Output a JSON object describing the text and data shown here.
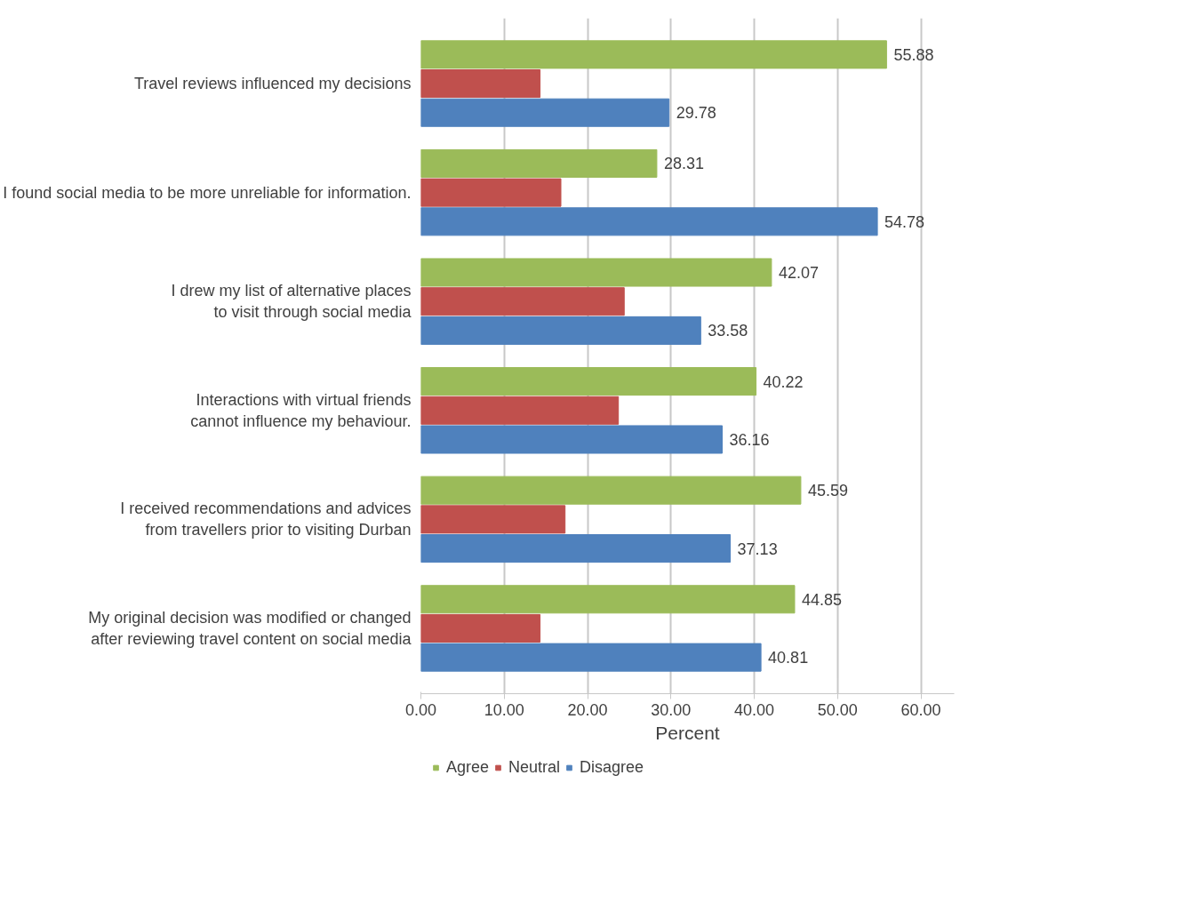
{
  "chart_data": {
    "type": "bar",
    "orientation": "horizontal",
    "xlabel": "Percent",
    "categories": [
      "Travel reviews influenced my decisions",
      "I found social media to be more unreliable for information.",
      "I drew my list of alternative places to visit through social media",
      "Interactions with virtual friends cannot influence my behaviour.",
      "I received recommendations and advices from travellers prior to visiting Durban",
      "My original decision was modified or changed after reviewing travel content on social media"
    ],
    "series": [
      {
        "name": "Agree",
        "color": "#9bbb59",
        "values": [
          55.88,
          28.31,
          42.07,
          40.22,
          45.59,
          44.85
        ],
        "value_labels": [
          "55.88",
          "28.31",
          "42.07",
          "40.22",
          "45.59",
          "44.85"
        ]
      },
      {
        "name": "Neutral",
        "color": "#c0504d",
        "values": [
          14.3,
          16.8,
          24.4,
          23.7,
          17.3,
          14.3
        ]
      },
      {
        "name": "Disagree",
        "color": "#4f81bd",
        "values": [
          29.78,
          54.78,
          33.58,
          36.16,
          37.13,
          40.81
        ],
        "value_labels": [
          "29.78",
          "54.78",
          "33.58",
          "36.16",
          "37.13",
          "40.81"
        ]
      }
    ],
    "xlim": [
      0,
      64
    ],
    "xticks": [
      {
        "value": 0,
        "label": "0.00"
      },
      {
        "value": 10,
        "label": "10.00"
      },
      {
        "value": 20,
        "label": "20.00"
      },
      {
        "value": 30,
        "label": "30.00"
      },
      {
        "value": 40,
        "label": "40.00"
      },
      {
        "value": 50,
        "label": "50.00"
      },
      {
        "value": 60,
        "label": "60.00"
      }
    ],
    "grid": "x",
    "legend": "bottom left"
  }
}
